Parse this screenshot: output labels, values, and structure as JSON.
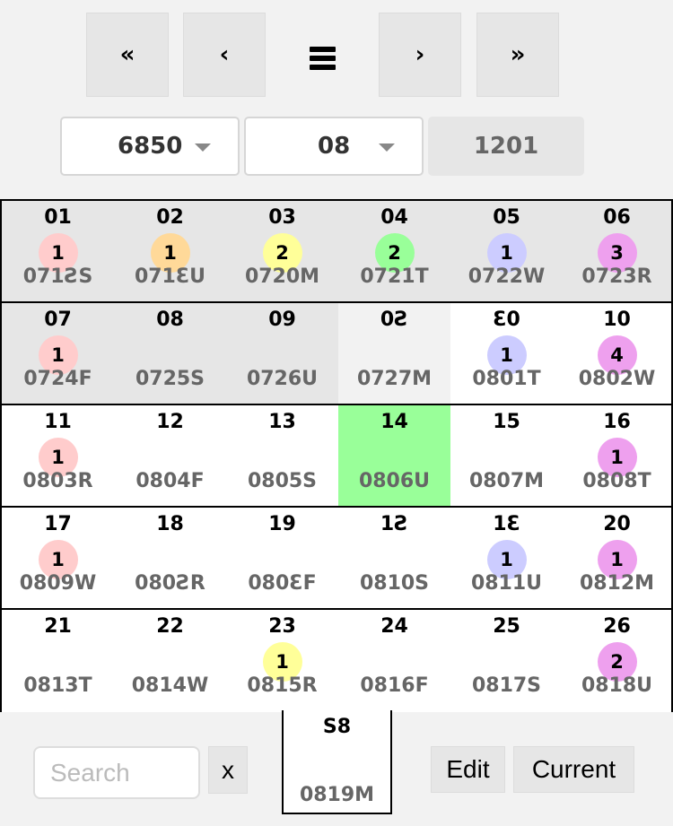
{
  "nav": {
    "first_label": "«",
    "prev_label": "‹",
    "menu_icon": "hamburger-menu-icon",
    "next_label": "›",
    "last_label": "»"
  },
  "selectors": {
    "year": "6850",
    "month": "08",
    "readonly_value": "1201"
  },
  "colors": {
    "pink": "#ffcccc",
    "orange": "#ffd999",
    "yellow": "#ffff99",
    "green": "#99ff99",
    "blue": "#ccccff",
    "purple": "#eea0ee",
    "grey": "#e6e6e6",
    "light": "#f2f2f2",
    "white": "#ffffff",
    "highlight": "#99ff99"
  },
  "calendar": {
    "rows": [
      [
        {
          "day": "01",
          "count": "1",
          "badge": "pink",
          "code": "071ƧS",
          "bg": "grey"
        },
        {
          "day": "02",
          "count": "1",
          "badge": "orange",
          "code": "071ƐU",
          "bg": "grey"
        },
        {
          "day": "03",
          "count": "2",
          "badge": "yellow",
          "code": "0720M",
          "bg": "grey"
        },
        {
          "day": "04",
          "count": "2",
          "badge": "green",
          "code": "0721T",
          "bg": "grey"
        },
        {
          "day": "05",
          "count": "1",
          "badge": "blue",
          "code": "0722W",
          "bg": "grey"
        },
        {
          "day": "06",
          "count": "3",
          "badge": "purple",
          "code": "0723R",
          "bg": "grey"
        }
      ],
      [
        {
          "day": "07",
          "count": "1",
          "badge": "pink",
          "code": "0724F",
          "bg": "grey"
        },
        {
          "day": "08",
          "code": "0725S",
          "bg": "grey"
        },
        {
          "day": "09",
          "code": "0726U",
          "bg": "grey"
        },
        {
          "day": "0Ƨ",
          "code": "0727M",
          "bg": "light"
        },
        {
          "day": "Ɛ0",
          "count": "1",
          "badge": "blue",
          "code": "0801T",
          "bg": "white"
        },
        {
          "day": "10",
          "count": "4",
          "badge": "purple",
          "code": "0802W",
          "bg": "white"
        }
      ],
      [
        {
          "day": "11",
          "count": "1",
          "badge": "pink",
          "code": "0803R",
          "bg": "white"
        },
        {
          "day": "12",
          "code": "0804F",
          "bg": "white"
        },
        {
          "day": "13",
          "code": "0805S",
          "bg": "white"
        },
        {
          "day": "14",
          "code": "0806U",
          "bg": "highlight"
        },
        {
          "day": "15",
          "code": "0807M",
          "bg": "white"
        },
        {
          "day": "16",
          "count": "1",
          "badge": "purple",
          "code": "0808T",
          "bg": "white"
        }
      ],
      [
        {
          "day": "17",
          "count": "1",
          "badge": "pink",
          "code": "0809W",
          "bg": "white"
        },
        {
          "day": "18",
          "code": "080ƧR",
          "bg": "white"
        },
        {
          "day": "19",
          "code": "080ƐF",
          "bg": "white"
        },
        {
          "day": "1Ƨ",
          "code": "0810S",
          "bg": "white"
        },
        {
          "day": "1Ɛ",
          "count": "1",
          "badge": "blue",
          "code": "0811U",
          "bg": "white"
        },
        {
          "day": "20",
          "count": "1",
          "badge": "purple",
          "code": "0812M",
          "bg": "white"
        }
      ],
      [
        {
          "day": "21",
          "code": "0813T",
          "bg": "white"
        },
        {
          "day": "22",
          "code": "0814W",
          "bg": "white"
        },
        {
          "day": "23",
          "count": "1",
          "badge": "yellow",
          "code": "0815R",
          "bg": "white"
        },
        {
          "day": "24",
          "code": "0816F",
          "bg": "white"
        },
        {
          "day": "25",
          "code": "0817S",
          "bg": "white"
        },
        {
          "day": "26",
          "count": "2",
          "badge": "purple",
          "code": "0818U",
          "bg": "white"
        }
      ]
    ],
    "extra": {
      "day": "S8",
      "code": "0819M"
    }
  },
  "footer": {
    "search_placeholder": "Search",
    "search_value": "",
    "clear_label": "x",
    "edit_label": "Edit",
    "current_label": "Current"
  }
}
